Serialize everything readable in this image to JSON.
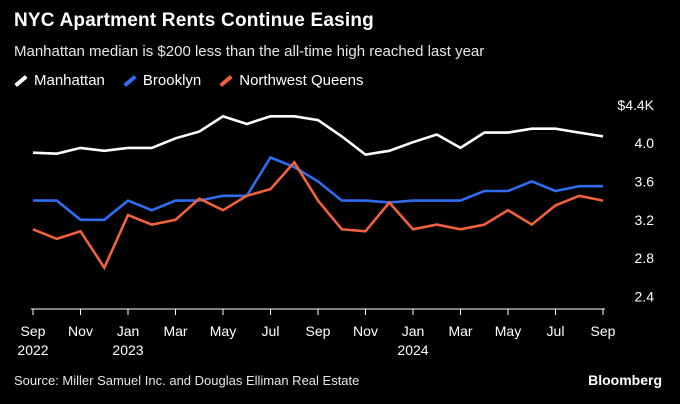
{
  "header": {
    "title": "NYC Apartment Rents Continue Easing",
    "subtitle": "Manhattan median is $200 less than the all-time high reached last year"
  },
  "footer": {
    "source": "Source: Miller Samuel Inc. and Douglas Elliman Real Estate",
    "brand": "Bloomberg"
  },
  "chart_data": {
    "type": "line",
    "title": "NYC Apartment Rents Continue Easing",
    "subtitle": "Manhattan median is $200 less than the all-time high reached last year",
    "xlabel": "",
    "ylabel": "",
    "y_unit_prefix": "$",
    "y_unit_suffix": "K",
    "ylim": [
      2.3,
      4.45
    ],
    "yticks": [
      {
        "value": 2.4,
        "label": "2.4"
      },
      {
        "value": 2.8,
        "label": "2.8"
      },
      {
        "value": 3.2,
        "label": "3.2"
      },
      {
        "value": 3.6,
        "label": "3.6"
      },
      {
        "value": 4.0,
        "label": "4.0"
      },
      {
        "value": 4.4,
        "label": "$4.4K"
      }
    ],
    "x": [
      "2022-09",
      "2022-10",
      "2022-11",
      "2022-12",
      "2023-01",
      "2023-02",
      "2023-03",
      "2023-04",
      "2023-05",
      "2023-06",
      "2023-07",
      "2023-08",
      "2023-09",
      "2023-10",
      "2023-11",
      "2023-12",
      "2024-01",
      "2024-02",
      "2024-03",
      "2024-04",
      "2024-05",
      "2024-06",
      "2024-07",
      "2024-08",
      "2024-09"
    ],
    "xticks": [
      {
        "index": 0,
        "month": "Sep",
        "year": "2022"
      },
      {
        "index": 2,
        "month": "Nov",
        "year": ""
      },
      {
        "index": 4,
        "month": "Jan",
        "year": "2023"
      },
      {
        "index": 6,
        "month": "Mar",
        "year": ""
      },
      {
        "index": 8,
        "month": "May",
        "year": ""
      },
      {
        "index": 10,
        "month": "Jul",
        "year": ""
      },
      {
        "index": 12,
        "month": "Sep",
        "year": ""
      },
      {
        "index": 14,
        "month": "Nov",
        "year": ""
      },
      {
        "index": 16,
        "month": "Jan",
        "year": "2024"
      },
      {
        "index": 18,
        "month": "Mar",
        "year": ""
      },
      {
        "index": 20,
        "month": "May",
        "year": ""
      },
      {
        "index": 22,
        "month": "Jul",
        "year": ""
      },
      {
        "index": 24,
        "month": "Sep",
        "year": ""
      }
    ],
    "grid": false,
    "legend_position": "top-left",
    "series": [
      {
        "name": "Manhattan",
        "color": "#ffffff",
        "values": [
          3.9,
          3.89,
          3.95,
          3.92,
          3.95,
          3.95,
          4.05,
          4.12,
          4.28,
          4.2,
          4.28,
          4.28,
          4.24,
          4.07,
          3.88,
          3.92,
          4.01,
          4.09,
          3.95,
          4.11,
          4.11,
          4.15,
          4.15,
          4.11,
          4.07
        ]
      },
      {
        "name": "Brooklyn",
        "color": "#2f6cf0",
        "values": [
          3.4,
          3.4,
          3.2,
          3.2,
          3.4,
          3.3,
          3.4,
          3.4,
          3.45,
          3.45,
          3.85,
          3.75,
          3.6,
          3.4,
          3.4,
          3.38,
          3.4,
          3.4,
          3.4,
          3.5,
          3.5,
          3.6,
          3.5,
          3.55,
          3.55
        ]
      },
      {
        "name": "Northwest Queens",
        "color": "#f0613d",
        "values": [
          3.1,
          3.0,
          3.08,
          2.7,
          3.25,
          3.15,
          3.2,
          3.42,
          3.3,
          3.45,
          3.52,
          3.8,
          3.4,
          3.1,
          3.08,
          3.38,
          3.1,
          3.15,
          3.1,
          3.15,
          3.3,
          3.15,
          3.35,
          3.45,
          3.4
        ]
      }
    ]
  }
}
